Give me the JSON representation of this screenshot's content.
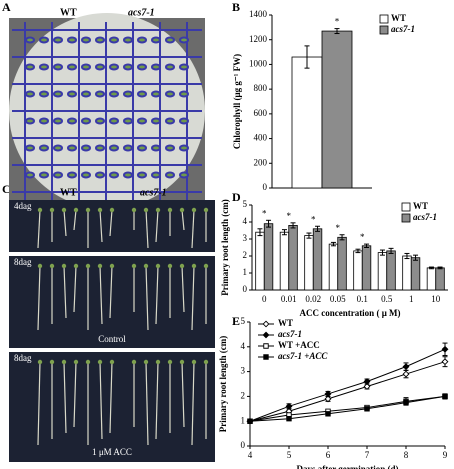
{
  "figure": {
    "panel_letters": [
      "A",
      "B",
      "C",
      "D",
      "E"
    ],
    "photo_a": {
      "labels": [
        "WT",
        "acs7-1"
      ]
    },
    "photo_c": {
      "labels": [
        "WT",
        "acs7-1"
      ],
      "stages": [
        "4dag",
        "8dag",
        "8dag"
      ],
      "treatments": [
        "Control",
        "1 μM ACC"
      ]
    }
  },
  "chart_data": [
    {
      "type": "bar",
      "ylabel": "Chlorophyll (μg g⁻¹ FW)",
      "categories": [
        null
      ],
      "annotations": [
        "*"
      ],
      "legend": "outside right",
      "ylim": [
        0,
        1400
      ],
      "yticks": [
        0,
        200,
        400,
        600,
        800,
        1000,
        1200,
        1400
      ],
      "series": [
        {
          "name": "WT",
          "color": "#ffffff",
          "italic": false,
          "values": [
            1060
          ],
          "errors": [
            90
          ]
        },
        {
          "name": "acs7-1",
          "color": "#8c8c8c",
          "italic": true,
          "values": [
            1270
          ],
          "errors": [
            20
          ]
        }
      ]
    },
    {
      "type": "bar",
      "ylabel": "Primary root length (cm)",
      "xlabel": "ACC concentration ( μ M)",
      "legend": "upper right",
      "categories": [
        "0",
        "0.01",
        "0.02",
        "0.05",
        "0.1",
        "0.5",
        "1",
        "10"
      ],
      "annotations": [
        "*",
        "*",
        "*",
        "*",
        "*",
        null,
        null,
        null
      ],
      "ylim": [
        0,
        5
      ],
      "yticks": [
        0,
        1,
        2,
        3,
        4,
        5
      ],
      "series": [
        {
          "name": "WT",
          "color": "#ffffff",
          "italic": false,
          "values": [
            3.4,
            3.4,
            3.2,
            2.7,
            2.3,
            2.2,
            2.0,
            1.3
          ],
          "errors": [
            0.2,
            0.15,
            0.15,
            0.1,
            0.1,
            0.15,
            0.15,
            0.05
          ]
        },
        {
          "name": "acs7-1",
          "color": "#8c8c8c",
          "italic": true,
          "values": [
            3.9,
            3.8,
            3.6,
            3.1,
            2.6,
            2.3,
            1.9,
            1.3
          ],
          "errors": [
            0.2,
            0.15,
            0.15,
            0.15,
            0.1,
            0.15,
            0.15,
            0.05
          ]
        }
      ]
    },
    {
      "type": "line",
      "ylabel": "Primary root length (cm)",
      "xlabel": "Days after germination (d)",
      "legend": "upper left",
      "x": [
        4,
        5,
        6,
        7,
        8,
        9
      ],
      "xlim": [
        4,
        9
      ],
      "xticks": [
        4,
        5,
        6,
        7,
        8,
        9
      ],
      "ylim": [
        0,
        5
      ],
      "yticks": [
        0,
        1,
        2,
        3,
        4,
        5
      ],
      "series": [
        {
          "name": "WT",
          "color": "#000000",
          "marker": "diamond-open",
          "italic": false,
          "values": [
            1.0,
            1.4,
            1.9,
            2.4,
            2.9,
            3.4
          ],
          "errors": [
            0.05,
            0.1,
            0.1,
            0.1,
            0.15,
            0.2
          ]
        },
        {
          "name": "acs7-1",
          "color": "#000000",
          "marker": "diamond",
          "italic": true,
          "values": [
            1.0,
            1.6,
            2.1,
            2.6,
            3.2,
            3.9
          ],
          "errors": [
            0.05,
            0.1,
            0.1,
            0.1,
            0.15,
            0.25
          ]
        },
        {
          "name": "WT +ACC",
          "color": "#000000",
          "marker": "square-open",
          "italic": false,
          "values": [
            1.0,
            1.25,
            1.4,
            1.55,
            1.8,
            2.0
          ],
          "errors": [
            0.05,
            0.05,
            0.05,
            0.05,
            0.15,
            0.1
          ]
        },
        {
          "name": "acs7-1 +ACC",
          "color": "#000000",
          "marker": "square",
          "italic": true,
          "values": [
            1.0,
            1.1,
            1.3,
            1.5,
            1.75,
            2.0
          ],
          "errors": [
            0.05,
            0.05,
            0.05,
            0.05,
            0.1,
            0.1
          ]
        }
      ]
    }
  ]
}
